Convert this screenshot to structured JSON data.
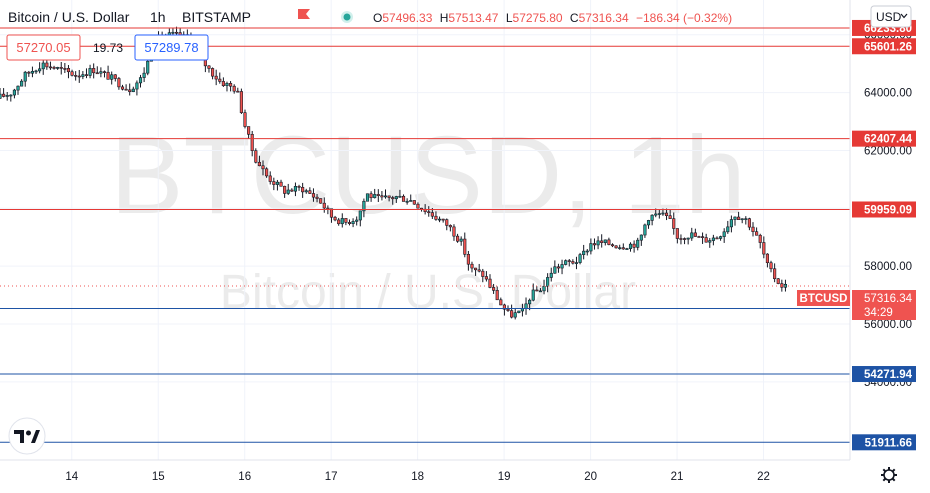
{
  "header": {
    "symbol_title": "Bitcoin / U.S. Dollar",
    "interval": "1h",
    "exchange": "BITSTAMP",
    "open_label": "O",
    "open_value": "57496.33",
    "high_label": "H",
    "high_value": "57513.47",
    "low_label": "L",
    "low_value": "57275.80",
    "close_label": "C",
    "close_value": "57316.34",
    "change": "−186.34 (−0.32%)"
  },
  "quote": {
    "bid": "57270.05",
    "spread": "19.73",
    "ask": "57289.78"
  },
  "currency_menu": "USD",
  "watermark": {
    "main": "BTCUSD, 1h",
    "sub": "Bitcoin / U.S. Dollar"
  },
  "price_tag": {
    "symbol": "BTCUSD",
    "price": "57316.34",
    "countdown": "34:29"
  },
  "colors": {
    "up": "#26a69a",
    "down": "#ef5350",
    "resistance": "#e53935",
    "support": "#1e53a5",
    "candle": "#131722"
  },
  "icons": {
    "logo": "tradingview-logo-icon",
    "settings": "gear-icon",
    "quote_status": "market-open-dot-icon",
    "header_action": "flag-icon"
  },
  "chart_data": {
    "type": "candlestick",
    "title": "Bitcoin / U.S. Dollar · 1h · BITSTAMP",
    "ylim": [
      51300,
      67200
    ],
    "y_ticks": [
      {
        "value": 54000,
        "label": "54000.00"
      },
      {
        "value": 56000,
        "label": "56000.00"
      },
      {
        "value": 58000,
        "label": "58000.00"
      },
      {
        "value": 60000,
        "label": "60000.00"
      },
      {
        "value": 62000,
        "label": "62000.00"
      },
      {
        "value": 64000,
        "label": "64000.00"
      },
      {
        "value": 66000,
        "label": "66000.00"
      }
    ],
    "x_ticks": [
      {
        "t": 14,
        "label": "14"
      },
      {
        "t": 15,
        "label": "15"
      },
      {
        "t": 16,
        "label": "16"
      },
      {
        "t": 17,
        "label": "17"
      },
      {
        "t": 18,
        "label": "18"
      },
      {
        "t": 19,
        "label": "19"
      },
      {
        "t": 20,
        "label": "20"
      },
      {
        "t": 21,
        "label": "21"
      },
      {
        "t": 22,
        "label": "22"
      }
    ],
    "xlim_days": [
      13.17,
      23.0
    ],
    "last_bar_day": 22.26,
    "levels": [
      {
        "value": 66233.8,
        "label": "66233.80",
        "kind": "resistance"
      },
      {
        "value": 65601.26,
        "label": "65601.26",
        "kind": "resistance"
      },
      {
        "value": 62407.44,
        "label": "62407.44",
        "kind": "resistance"
      },
      {
        "value": 59959.09,
        "label": "59959.09",
        "kind": "resistance"
      },
      {
        "value": 56536.91,
        "label": "56536.91",
        "kind": "support"
      },
      {
        "value": 54271.94,
        "label": "54271.94",
        "kind": "support"
      },
      {
        "value": 51911.66,
        "label": "51911.66",
        "kind": "support"
      }
    ],
    "last_price": 57316.34,
    "price_path": [
      [
        13.17,
        63800
      ],
      [
        13.35,
        64000
      ],
      [
        13.5,
        64600
      ],
      [
        13.7,
        65000
      ],
      [
        13.9,
        64800
      ],
      [
        14.1,
        64600
      ],
      [
        14.3,
        64800
      ],
      [
        14.5,
        64500
      ],
      [
        14.7,
        64100
      ],
      [
        14.85,
        64500
      ],
      [
        14.95,
        65300
      ],
      [
        15.05,
        65900
      ],
      [
        15.2,
        66000
      ],
      [
        15.35,
        65900
      ],
      [
        15.45,
        65700
      ],
      [
        15.6,
        64900
      ],
      [
        15.75,
        64400
      ],
      [
        15.95,
        64100
      ],
      [
        16.05,
        62800
      ],
      [
        16.15,
        61800
      ],
      [
        16.3,
        61100
      ],
      [
        16.5,
        60600
      ],
      [
        16.7,
        60700
      ],
      [
        16.9,
        60300
      ],
      [
        17.05,
        59700
      ],
      [
        17.2,
        59500
      ],
      [
        17.35,
        59700
      ],
      [
        17.45,
        60500
      ],
      [
        17.6,
        60300
      ],
      [
        17.8,
        60400
      ],
      [
        17.95,
        60300
      ],
      [
        18.1,
        60000
      ],
      [
        18.25,
        59700
      ],
      [
        18.4,
        59400
      ],
      [
        18.55,
        58800
      ],
      [
        18.65,
        57900
      ],
      [
        18.8,
        57700
      ],
      [
        18.9,
        57200
      ],
      [
        19.0,
        56700
      ],
      [
        19.1,
        56300
      ],
      [
        19.25,
        56400
      ],
      [
        19.35,
        57000
      ],
      [
        19.5,
        57300
      ],
      [
        19.6,
        57900
      ],
      [
        19.75,
        58100
      ],
      [
        19.9,
        58200
      ],
      [
        20.05,
        58800
      ],
      [
        20.2,
        58800
      ],
      [
        20.4,
        58700
      ],
      [
        20.6,
        58800
      ],
      [
        20.7,
        59700
      ],
      [
        20.85,
        59800
      ],
      [
        20.95,
        59600
      ],
      [
        21.05,
        59000
      ],
      [
        21.2,
        59100
      ],
      [
        21.35,
        58900
      ],
      [
        21.5,
        59000
      ],
      [
        21.6,
        59300
      ],
      [
        21.7,
        59800
      ],
      [
        21.85,
        59600
      ],
      [
        22.0,
        58800
      ],
      [
        22.1,
        57900
      ],
      [
        22.2,
        57500
      ],
      [
        22.26,
        57316
      ]
    ]
  }
}
